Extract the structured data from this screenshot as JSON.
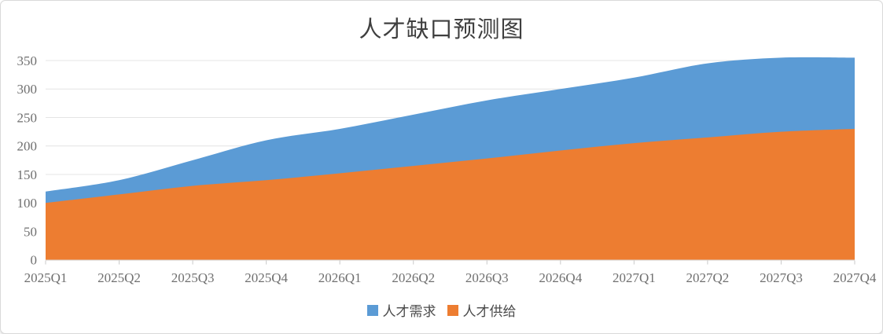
{
  "chart_data": {
    "type": "area",
    "title": "人才缺口预测图",
    "categories": [
      "2025Q1",
      "2025Q2",
      "2025Q3",
      "2025Q4",
      "2026Q1",
      "2026Q2",
      "2026Q3",
      "2026Q4",
      "2027Q1",
      "2027Q2",
      "2027Q3",
      "2027Q4"
    ],
    "series": [
      {
        "name": "人才需求",
        "color": "#5B9BD5",
        "values": [
          120,
          140,
          175,
          210,
          230,
          255,
          280,
          300,
          320,
          345,
          355,
          355
        ]
      },
      {
        "name": "人才供给",
        "color": "#ED7D31",
        "values": [
          100,
          115,
          130,
          140,
          152,
          165,
          178,
          192,
          205,
          215,
          225,
          230
        ]
      }
    ],
    "stacked": false,
    "smooth": true,
    "xlabel": "",
    "ylabel": "",
    "ylim": [
      0,
      350
    ],
    "y_ticks": [
      0,
      50,
      100,
      150,
      200,
      250,
      300,
      350
    ],
    "grid": true,
    "legend_position": "bottom"
  },
  "legend": {
    "items": [
      {
        "label": "人才需求",
        "color": "#5B9BD5"
      },
      {
        "label": "人才供给",
        "color": "#ED7D31"
      }
    ]
  },
  "colors": {
    "demand_area": "#5B9BD5",
    "supply_area": "#ED7D31",
    "title_text": "#3f3f3f",
    "axis_label_text": "#6f6f6f",
    "gridline": "#e4e4e4",
    "axis_line": "#d6d6d6",
    "tick_mark": "#c9c9c9",
    "card_border": "#d9d9d9",
    "background": "#ffffff"
  }
}
